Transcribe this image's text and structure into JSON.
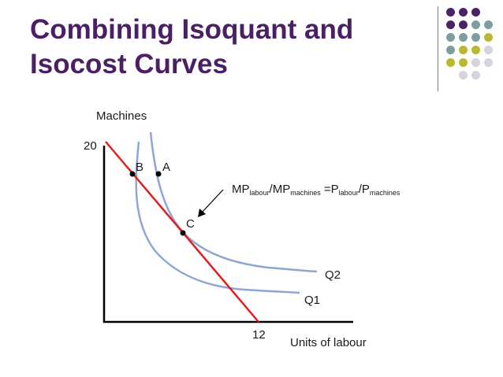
{
  "slide": {
    "title_line1": "Combining Isoquant and",
    "title_line2": "Isocost Curves"
  },
  "diagram": {
    "y_axis_label": "Machines",
    "x_axis_label": "Units of labour",
    "y_intercept_label": "20",
    "x_intercept_label": "12",
    "point_labels": {
      "a": "A",
      "b": "B",
      "c": "C"
    },
    "curve_labels": {
      "q1": "Q1",
      "q2": "Q2"
    },
    "formula": {
      "mp": "MP",
      "labour_sub": "labour",
      "slash": "/",
      "mp2": "MP",
      "machines_sub": "machines",
      "equals_p": " =P",
      "labour_sub2": "labour",
      "slash2": "/P",
      "machines_sub2": "machines"
    }
  },
  "colors": {
    "title": "#4a1f66",
    "isocost_line": "#dd1f1f",
    "isoquant_curves": "#8ea6d6",
    "axes": "#000000",
    "deco_purple": "#4b2366",
    "deco_teal": "#7d9ea0",
    "deco_olive": "#b8b832",
    "deco_grey": "#d4d4de"
  }
}
